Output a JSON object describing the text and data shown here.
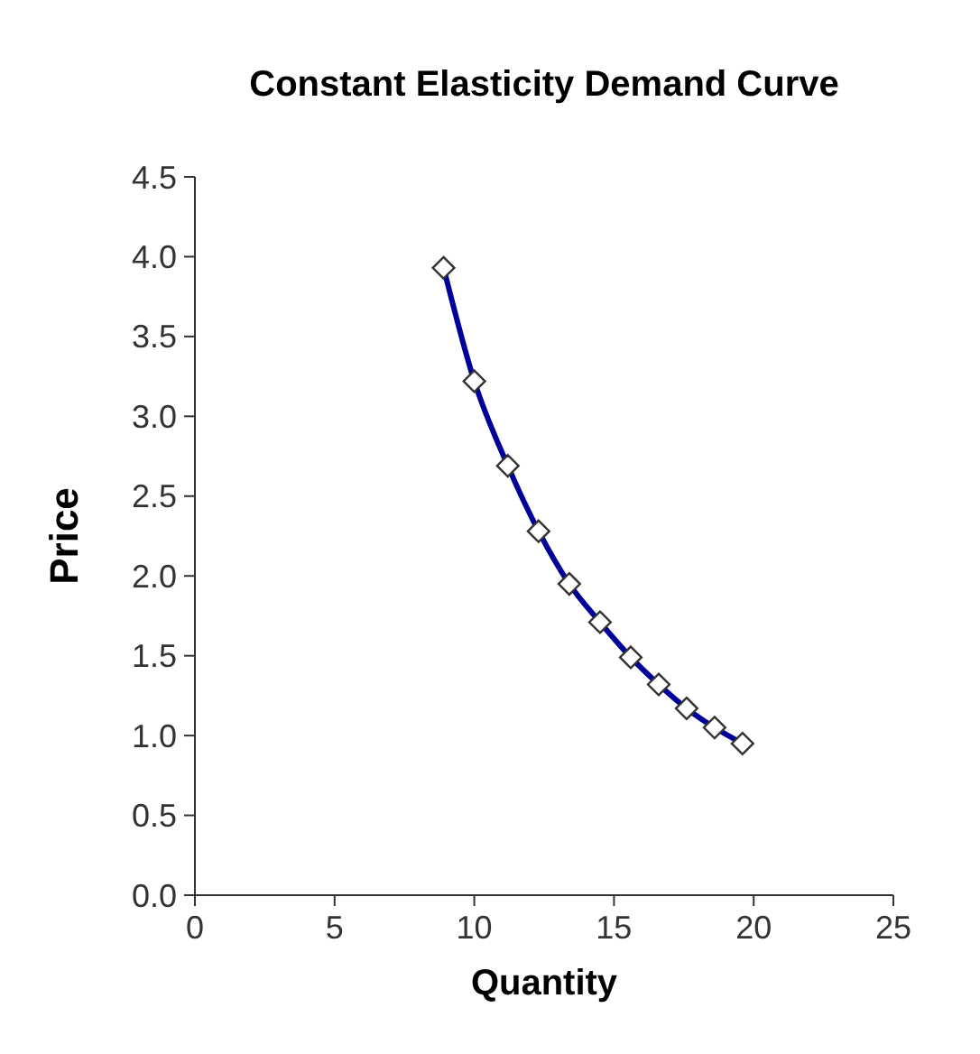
{
  "chart_data": {
    "type": "line",
    "title": "Constant Elasticity Demand Curve",
    "xlabel": "Quantity",
    "ylabel": "Price",
    "x": [
      8.9,
      10,
      11.2,
      12.3,
      13.4,
      14.5,
      15.6,
      16.6,
      17.6,
      18.6,
      19.6
    ],
    "series": [
      {
        "color": "#000099",
        "values": [
          3.93,
          3.22,
          2.69,
          2.28,
          1.95,
          1.71,
          1.49,
          1.32,
          1.17,
          1.05,
          0.95
        ]
      }
    ],
    "xlim": [
      0,
      25
    ],
    "xticks": [
      0,
      5,
      10,
      15,
      20,
      25
    ],
    "ylim": [
      0,
      4.5
    ],
    "yticks": [
      {
        "value": 0,
        "label": "0.0"
      },
      0.5,
      {
        "value": 1,
        "label": "1.0"
      },
      1.5,
      {
        "value": 2,
        "label": "2.0"
      },
      2.5,
      {
        "value": 3,
        "label": "3.0"
      },
      3.5,
      {
        "value": 4,
        "label": "4.0"
      },
      4.5
    ],
    "marker": "diamond",
    "line_style": "solid"
  }
}
